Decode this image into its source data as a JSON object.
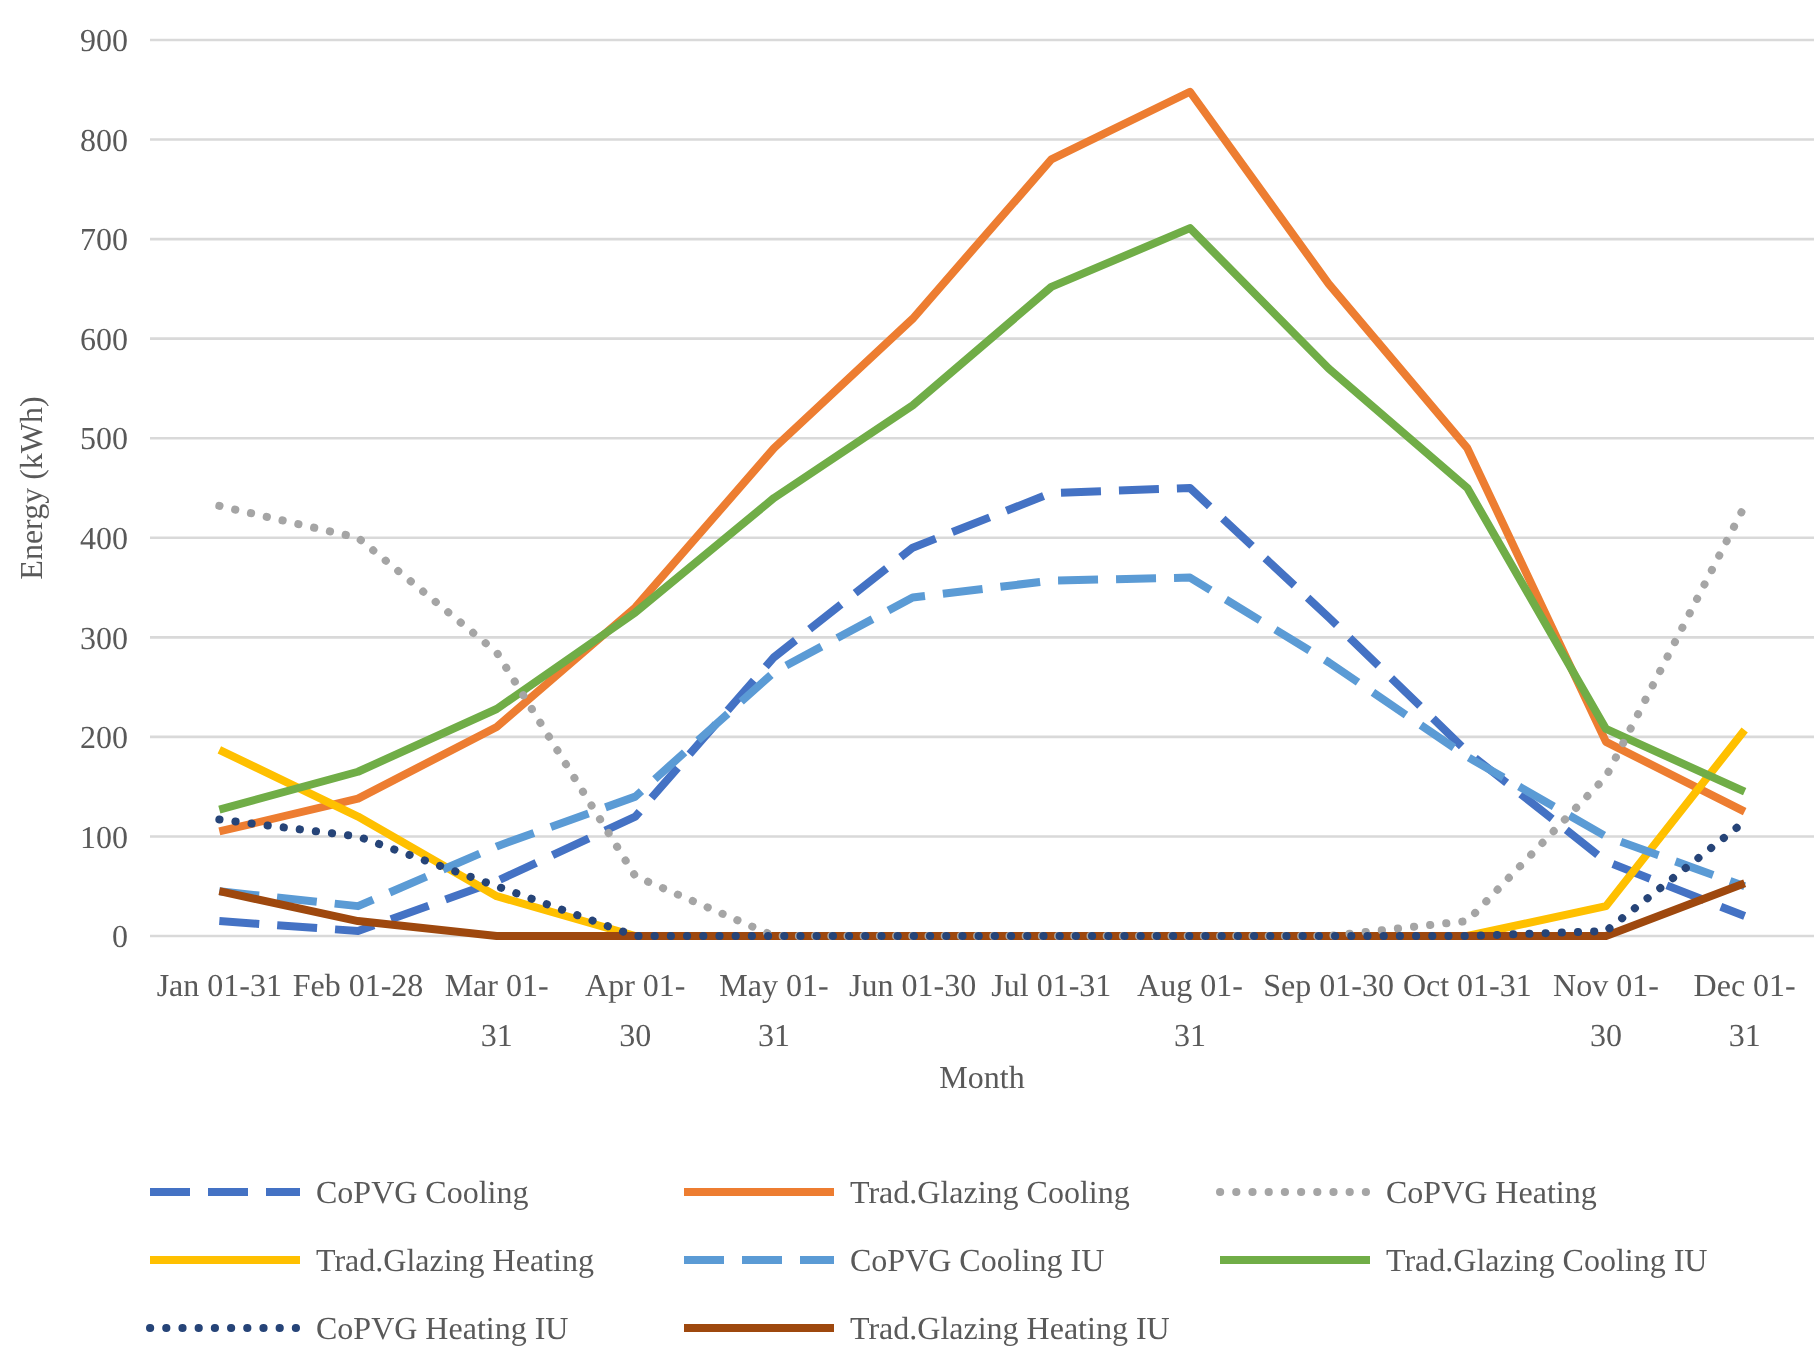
{
  "chart_data": {
    "type": "line",
    "xlabel": "Month",
    "ylabel": "Energy (kWh)",
    "categories": [
      "Jan 01-31",
      "Feb 01-28",
      "Mar 01-31",
      "Apr 01-30",
      "May 01-31",
      "Jun 01-30",
      "Jul 01-31",
      "Aug 01-31",
      "Sep 01-30",
      "Oct 01-31",
      "Nov 01-30",
      "Dec 01-31"
    ],
    "ylim": [
      0,
      900
    ],
    "yticks": [
      0,
      100,
      200,
      300,
      400,
      500,
      600,
      700,
      800,
      900
    ],
    "grid": "y",
    "legend": "bottom",
    "series": [
      {
        "name": "CoPVG Cooling",
        "color": "#4472c4",
        "line_style": "dashed",
        "values": [
          15,
          5,
          55,
          120,
          280,
          390,
          445,
          450,
          320,
          185,
          75,
          20
        ]
      },
      {
        "name": "Trad.Glazing Cooling",
        "color": "#ed7d31",
        "line_style": "solid",
        "values": [
          105,
          138,
          210,
          330,
          490,
          620,
          780,
          848,
          655,
          490,
          195,
          125
        ]
      },
      {
        "name": "CoPVG Heating",
        "color": "#a5a5a5",
        "line_style": "dotted",
        "values": [
          432,
          400,
          285,
          60,
          0,
          0,
          0,
          0,
          0,
          15,
          160,
          432
        ]
      },
      {
        "name": "Trad.Glazing Heating",
        "color": "#ffc000",
        "line_style": "solid",
        "values": [
          187,
          120,
          40,
          0,
          0,
          0,
          0,
          0,
          0,
          0,
          30,
          207
        ]
      },
      {
        "name": "CoPVG Cooling IU",
        "color": "#5b9bd5",
        "line_style": "dashed",
        "values": [
          45,
          30,
          90,
          140,
          265,
          340,
          357,
          360,
          275,
          180,
          100,
          50
        ]
      },
      {
        "name": "Trad.Glazing Cooling IU",
        "color": "#70ad47",
        "line_style": "solid",
        "values": [
          127,
          165,
          228,
          325,
          440,
          533,
          652,
          711,
          570,
          450,
          208,
          145
        ]
      },
      {
        "name": "CoPVG Heating IU",
        "color": "#264478",
        "line_style": "dotted",
        "values": [
          117,
          100,
          50,
          0,
          0,
          0,
          0,
          0,
          0,
          0,
          5,
          115
        ]
      },
      {
        "name": "Trad.Glazing Heating IU",
        "color": "#9e480e",
        "line_style": "solid",
        "values": [
          45,
          15,
          0,
          0,
          0,
          0,
          0,
          0,
          0,
          0,
          0,
          53
        ]
      }
    ]
  }
}
